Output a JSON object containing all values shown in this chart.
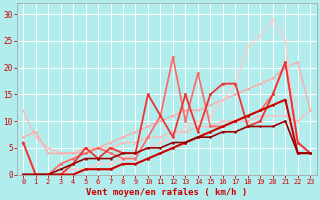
{
  "bg_color": "#b2eded",
  "grid_color": "#d0f0f0",
  "xlabel": "Vent moyen/en rafales ( km/h )",
  "xlabel_color": "#cc0000",
  "tick_color": "#cc0000",
  "xlim": [
    -0.5,
    23.5
  ],
  "ylim": [
    0,
    32
  ],
  "yticks": [
    0,
    5,
    10,
    15,
    20,
    25,
    30
  ],
  "xticks": [
    0,
    1,
    2,
    3,
    4,
    5,
    6,
    7,
    8,
    9,
    10,
    11,
    12,
    13,
    14,
    15,
    16,
    17,
    18,
    19,
    20,
    21,
    22,
    23
  ],
  "series": [
    {
      "x": [
        0,
        1,
        2,
        3,
        4,
        5,
        6,
        7,
        8,
        9,
        10,
        11,
        12,
        13,
        14,
        15,
        16,
        17,
        18,
        19,
        20,
        21,
        22,
        23
      ],
      "y": [
        12,
        7,
        5,
        4,
        4,
        5,
        5,
        5,
        6,
        6,
        7,
        7,
        8,
        8,
        9,
        9,
        10,
        10,
        10,
        11,
        11,
        11,
        10,
        12
      ],
      "color": "#ffbbbb",
      "lw": 1.0,
      "marker": "o",
      "ms": 1.8
    },
    {
      "x": [
        0,
        1,
        2,
        3,
        4,
        5,
        6,
        7,
        8,
        9,
        10,
        11,
        12,
        13,
        14,
        15,
        16,
        17,
        18,
        19,
        20,
        21,
        22,
        23
      ],
      "y": [
        7,
        8,
        4,
        4,
        4,
        4,
        5,
        6,
        7,
        8,
        9,
        10,
        11,
        12,
        12,
        13,
        14,
        15,
        16,
        17,
        18,
        20,
        21,
        12
      ],
      "color": "#ffaaaa",
      "lw": 1.0,
      "marker": "o",
      "ms": 1.8
    },
    {
      "x": [
        0,
        1,
        2,
        3,
        4,
        5,
        6,
        7,
        8,
        9,
        10,
        11,
        12,
        13,
        14,
        15,
        16,
        17,
        18,
        19,
        20,
        21,
        22,
        23
      ],
      "y": [
        0,
        0,
        0,
        0,
        1,
        1,
        2,
        2,
        3,
        4,
        5,
        6,
        7,
        9,
        10,
        11,
        14,
        17,
        24,
        26,
        29,
        25,
        6,
        4
      ],
      "color": "#ffcccc",
      "lw": 1.0,
      "marker": "o",
      "ms": 1.8
    },
    {
      "x": [
        0,
        1,
        2,
        3,
        4,
        5,
        6,
        7,
        8,
        9,
        10,
        11,
        12,
        13,
        14,
        15,
        16,
        17,
        18,
        19,
        20,
        21,
        22,
        23
      ],
      "y": [
        6,
        0,
        0,
        2,
        3,
        4,
        5,
        4,
        3,
        3,
        7,
        11,
        22,
        10,
        19,
        9,
        9,
        10,
        11,
        12,
        15,
        21,
        6,
        4
      ],
      "color": "#ff6666",
      "lw": 1.2,
      "marker": "o",
      "ms": 2.0
    },
    {
      "x": [
        0,
        1,
        2,
        3,
        4,
        5,
        6,
        7,
        8,
        9,
        10,
        11,
        12,
        13,
        14,
        15,
        16,
        17,
        18,
        19,
        20,
        21,
        22,
        23
      ],
      "y": [
        6,
        0,
        0,
        0,
        2,
        5,
        3,
        5,
        4,
        4,
        15,
        11,
        7,
        15,
        8,
        15,
        17,
        17,
        9,
        10,
        15,
        21,
        6,
        4
      ],
      "color": "#ee3333",
      "lw": 1.3,
      "marker": "o",
      "ms": 2.0
    },
    {
      "x": [
        0,
        1,
        2,
        3,
        4,
        5,
        6,
        7,
        8,
        9,
        10,
        11,
        12,
        13,
        14,
        15,
        16,
        17,
        18,
        19,
        20,
        21,
        22,
        23
      ],
      "y": [
        0,
        0,
        0,
        0,
        0,
        1,
        1,
        1,
        2,
        2,
        3,
        4,
        5,
        6,
        7,
        8,
        9,
        10,
        11,
        12,
        13,
        14,
        4,
        4
      ],
      "color": "#cc0000",
      "lw": 1.5,
      "marker": "o",
      "ms": 2.0
    },
    {
      "x": [
        0,
        1,
        2,
        3,
        4,
        5,
        6,
        7,
        8,
        9,
        10,
        11,
        12,
        13,
        14,
        15,
        16,
        17,
        18,
        19,
        20,
        21,
        22,
        23
      ],
      "y": [
        0,
        0,
        0,
        1,
        2,
        3,
        3,
        3,
        4,
        4,
        5,
        5,
        6,
        6,
        7,
        7,
        8,
        8,
        9,
        9,
        9,
        10,
        4,
        4
      ],
      "color": "#990000",
      "lw": 1.2,
      "marker": "o",
      "ms": 1.8
    }
  ]
}
